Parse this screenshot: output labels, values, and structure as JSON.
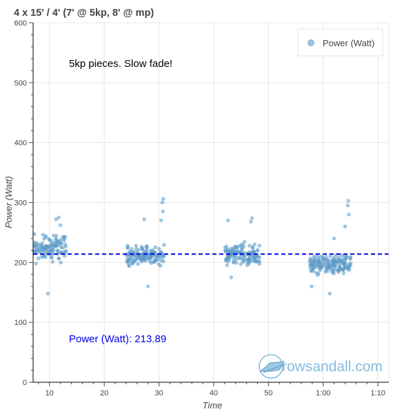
{
  "chart_data": {
    "type": "scatter",
    "title": "4 x 15' / 4' (7' @ 5kp, 8' @ mp)",
    "xlabel": "Time",
    "ylabel": "Power (Watt)",
    "xlim": [
      7,
      72
    ],
    "ylim": [
      0,
      600
    ],
    "x_ticks": [
      {
        "value": 10,
        "label": "10"
      },
      {
        "value": 20,
        "label": "20"
      },
      {
        "value": 30,
        "label": "30"
      },
      {
        "value": 40,
        "label": "40"
      },
      {
        "value": 50,
        "label": "50"
      },
      {
        "value": 60,
        "label": "1:00"
      },
      {
        "value": 70,
        "label": "1:10"
      }
    ],
    "y_ticks": [
      0,
      100,
      200,
      300,
      400,
      500,
      600
    ],
    "grid": true,
    "legend": {
      "placement": "top-right",
      "entries": [
        {
          "label": "Power (Watt)",
          "color": "#5b9bc8"
        }
      ]
    },
    "series": [
      {
        "name": "Power (Watt)",
        "color": "#5b9bc8",
        "segments": [
          {
            "x_start": 7.1,
            "x_end": 13.1,
            "mean": 225,
            "spread": 30,
            "count": 110,
            "seed": 11,
            "outliers": [
              [
                9.7,
                148
              ],
              [
                11.7,
                275
              ],
              [
                11.2,
                272
              ],
              [
                12.0,
                262
              ]
            ]
          },
          {
            "x_start": 24.0,
            "x_end": 31.0,
            "mean": 212,
            "spread": 24,
            "count": 130,
            "seed": 23,
            "outliers": [
              [
                30.8,
                306
              ],
              [
                30.6,
                300
              ],
              [
                30.7,
                285
              ],
              [
                27.3,
                272
              ],
              [
                28.0,
                160
              ],
              [
                30.4,
                270
              ]
            ]
          },
          {
            "x_start": 42.0,
            "x_end": 48.5,
            "mean": 212,
            "spread": 24,
            "count": 125,
            "seed": 37,
            "outliers": [
              [
                42.6,
                270
              ],
              [
                47.0,
                274
              ],
              [
                46.8,
                268
              ],
              [
                43.2,
                175
              ]
            ]
          },
          {
            "x_start": 57.5,
            "x_end": 65.0,
            "mean": 198,
            "spread": 24,
            "count": 150,
            "seed": 53,
            "outliers": [
              [
                64.6,
                303
              ],
              [
                64.5,
                295
              ],
              [
                64.7,
                280
              ],
              [
                61.2,
                148
              ],
              [
                62.0,
                240
              ],
              [
                57.9,
                160
              ],
              [
                64.0,
                260
              ]
            ]
          }
        ]
      }
    ],
    "average_line": {
      "value": 213.89,
      "color": "#0000ee"
    },
    "annotations": {
      "note": "5kp pieces.  Slow fade!",
      "average_label": "Power (Watt): 213.89"
    }
  },
  "watermark": {
    "text": "rowsandall.com"
  }
}
